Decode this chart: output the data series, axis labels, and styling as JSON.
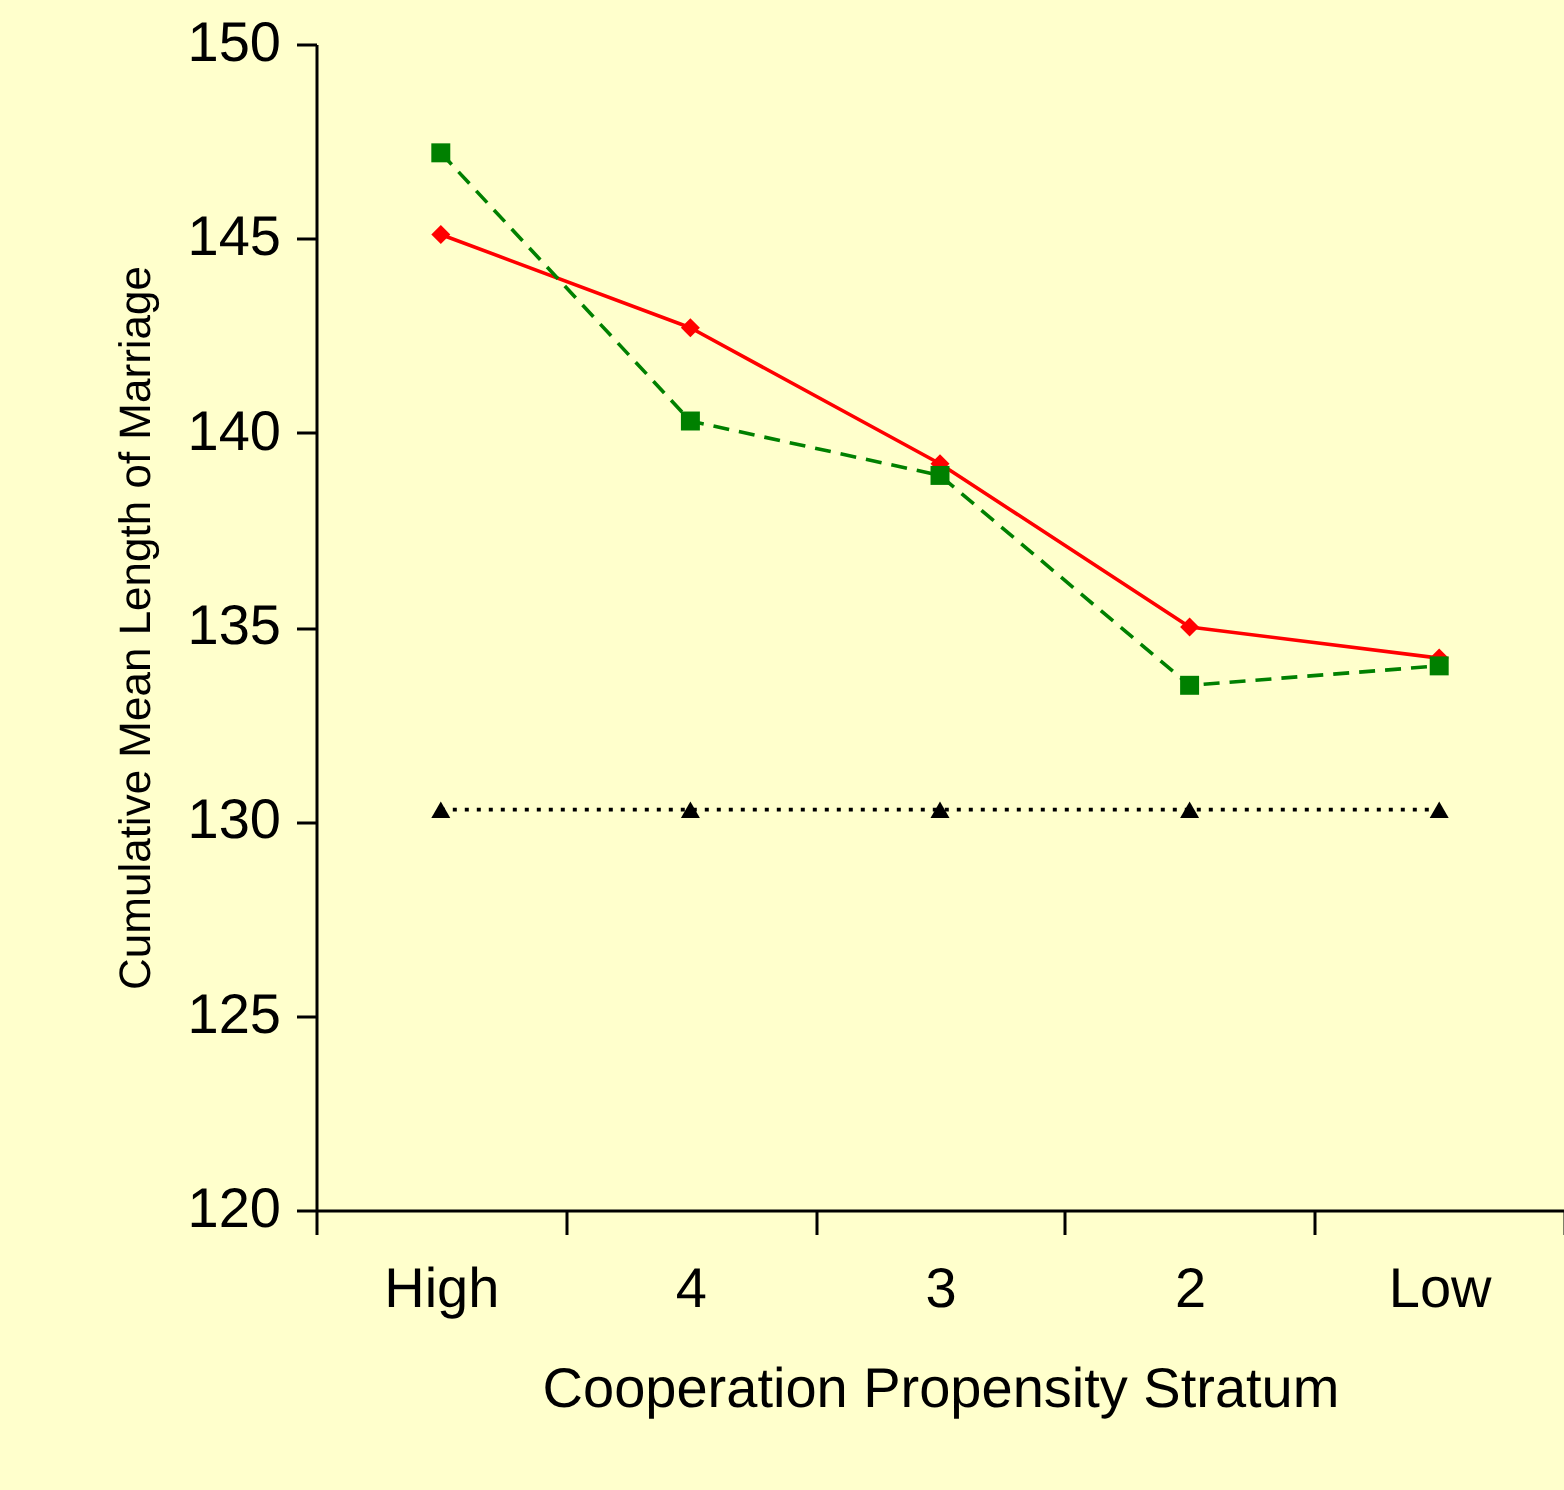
{
  "chart_data": {
    "type": "line",
    "xlabel": "Cooperation Propensity Stratum",
    "ylabel": "Cumulative Mean Length of Marriage",
    "categories": [
      "High",
      "4",
      "3",
      "2",
      "Low"
    ],
    "series": [
      {
        "color": "#ff0000",
        "marker": "diamond",
        "line_style": "solid",
        "values": [
          145.1,
          142.7,
          139.2,
          135.0,
          134.2
        ]
      },
      {
        "color": "#008000",
        "marker": "square",
        "line_style": "dashed",
        "values": [
          147.2,
          140.3,
          138.9,
          133.5,
          134.0
        ]
      },
      {
        "color": "#000000",
        "marker": "triangle",
        "line_style": "dotted",
        "values": [
          130.3,
          130.3,
          130.3,
          130.3,
          130.3
        ]
      }
    ],
    "ylim": [
      120,
      150
    ],
    "yticks": [
      120,
      125,
      130,
      135,
      140,
      145,
      150
    ],
    "grid": false
  }
}
